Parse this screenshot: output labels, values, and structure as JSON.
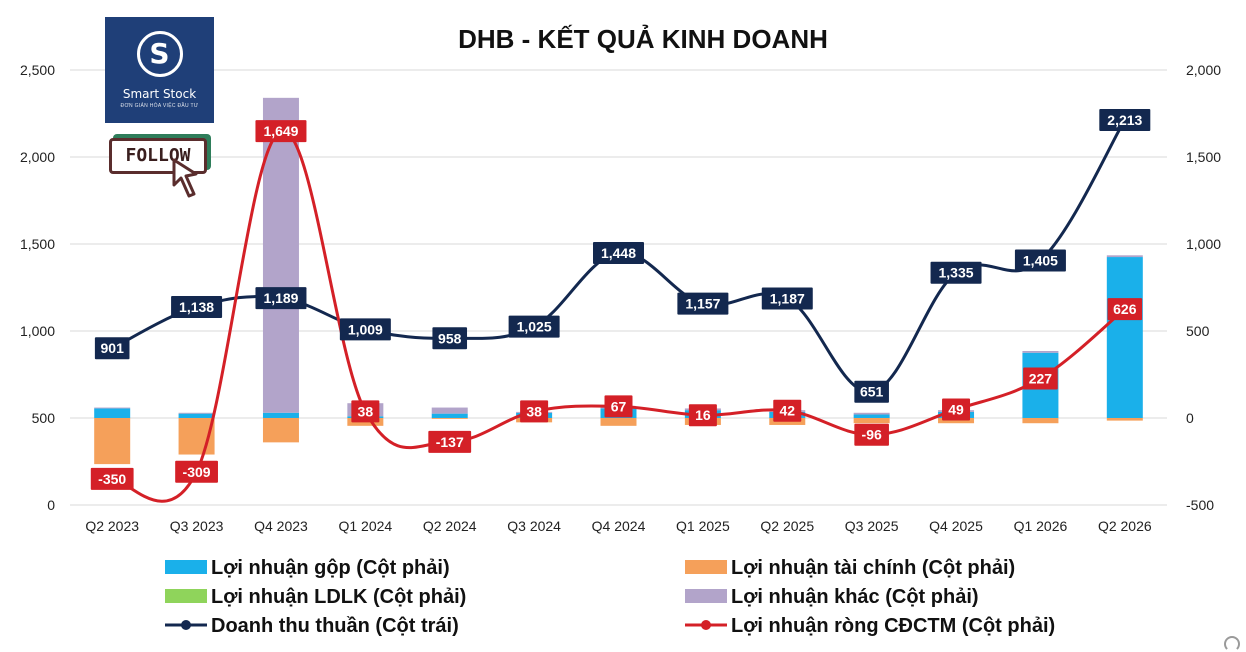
{
  "title": "DHB - KẾT QUẢ KINH DOANH",
  "logo": {
    "name": "Smart Stock",
    "tagline": "ĐƠN GIẢN HÓA VIỆC ĐẦU TƯ",
    "mark": "S"
  },
  "follow_button": {
    "label": "FOLLOW"
  },
  "chart_data": {
    "type": "bar+line",
    "title": "DHB - KẾT QUẢ KINH DOANH",
    "categories": [
      "Q2 2023",
      "Q3 2023",
      "Q4 2023",
      "Q1 2024",
      "Q2 2024",
      "Q3 2024",
      "Q4 2024",
      "Q1 2025",
      "Q2 2025",
      "Q3 2025",
      "Q4 2025",
      "Q1 2026",
      "Q2 2026"
    ],
    "left_axis": {
      "ylim": [
        0,
        2500
      ],
      "ticks": [
        0,
        500,
        1000,
        1500,
        2000,
        2500
      ]
    },
    "right_axis": {
      "ylim": [
        -500,
        2000
      ],
      "ticks": [
        -500,
        0,
        500,
        1000,
        1500,
        2000
      ]
    },
    "gridlines": true,
    "legend_position": "bottom",
    "bar_series": [
      {
        "name": "Lợi nhuận gộp (Cột phải)",
        "color": "#1ab0ea",
        "values": [
          55,
          25,
          30,
          10,
          25,
          30,
          55,
          45,
          35,
          20,
          35,
          375,
          925
        ]
      },
      {
        "name": "Lợi nhuận tài chính (Cột phải)",
        "color": "#f5a05a",
        "values": [
          -265,
          -210,
          -140,
          -45,
          -5,
          -25,
          -45,
          -40,
          -40,
          -30,
          -30,
          -30,
          -15
        ]
      },
      {
        "name": "Lợi nhuận LDLK (Cột phải)",
        "color": "#8fd45b",
        "values": [
          0,
          0,
          0,
          0,
          0,
          0,
          0,
          0,
          0,
          0,
          0,
          0,
          0
        ]
      },
      {
        "name": "Lợi nhuận khác (Cột phải)",
        "color": "#b2a4ca",
        "values": [
          5,
          5,
          1810,
          75,
          35,
          5,
          10,
          10,
          10,
          10,
          10,
          10,
          10
        ]
      }
    ],
    "line_series": [
      {
        "name": "Doanh thu thuần (Cột trái)",
        "color": "#13284f",
        "axis": "left",
        "values": [
          901,
          1138,
          1189,
          1009,
          958,
          1025,
          1448,
          1157,
          1187,
          651,
          1335,
          1405,
          2213
        ],
        "labels": [
          "901",
          "1,138",
          "1,189",
          "1,009",
          "958",
          "1,025",
          "1,448",
          "1,157",
          "1,187",
          "651",
          "1,335",
          "1,405",
          "2,213"
        ]
      },
      {
        "name": "Lợi nhuận ròng CĐCTM (Cột phải)",
        "color": "#d42027",
        "axis": "right",
        "values": [
          -350,
          -309,
          1649,
          38,
          -137,
          38,
          67,
          16,
          42,
          -96,
          49,
          227,
          626
        ],
        "labels": [
          "-350",
          "-309",
          "1,649",
          "38",
          "-137",
          "38",
          "67",
          "16",
          "42",
          "-96",
          "49",
          "227",
          "626"
        ]
      }
    ],
    "tick_labels_left": [
      "0",
      "500",
      "1,000",
      "1,500",
      "2,000",
      "2,500"
    ],
    "tick_labels_right": [
      "-500",
      "0",
      "500",
      "1,000",
      "1,500",
      "2,000"
    ]
  }
}
